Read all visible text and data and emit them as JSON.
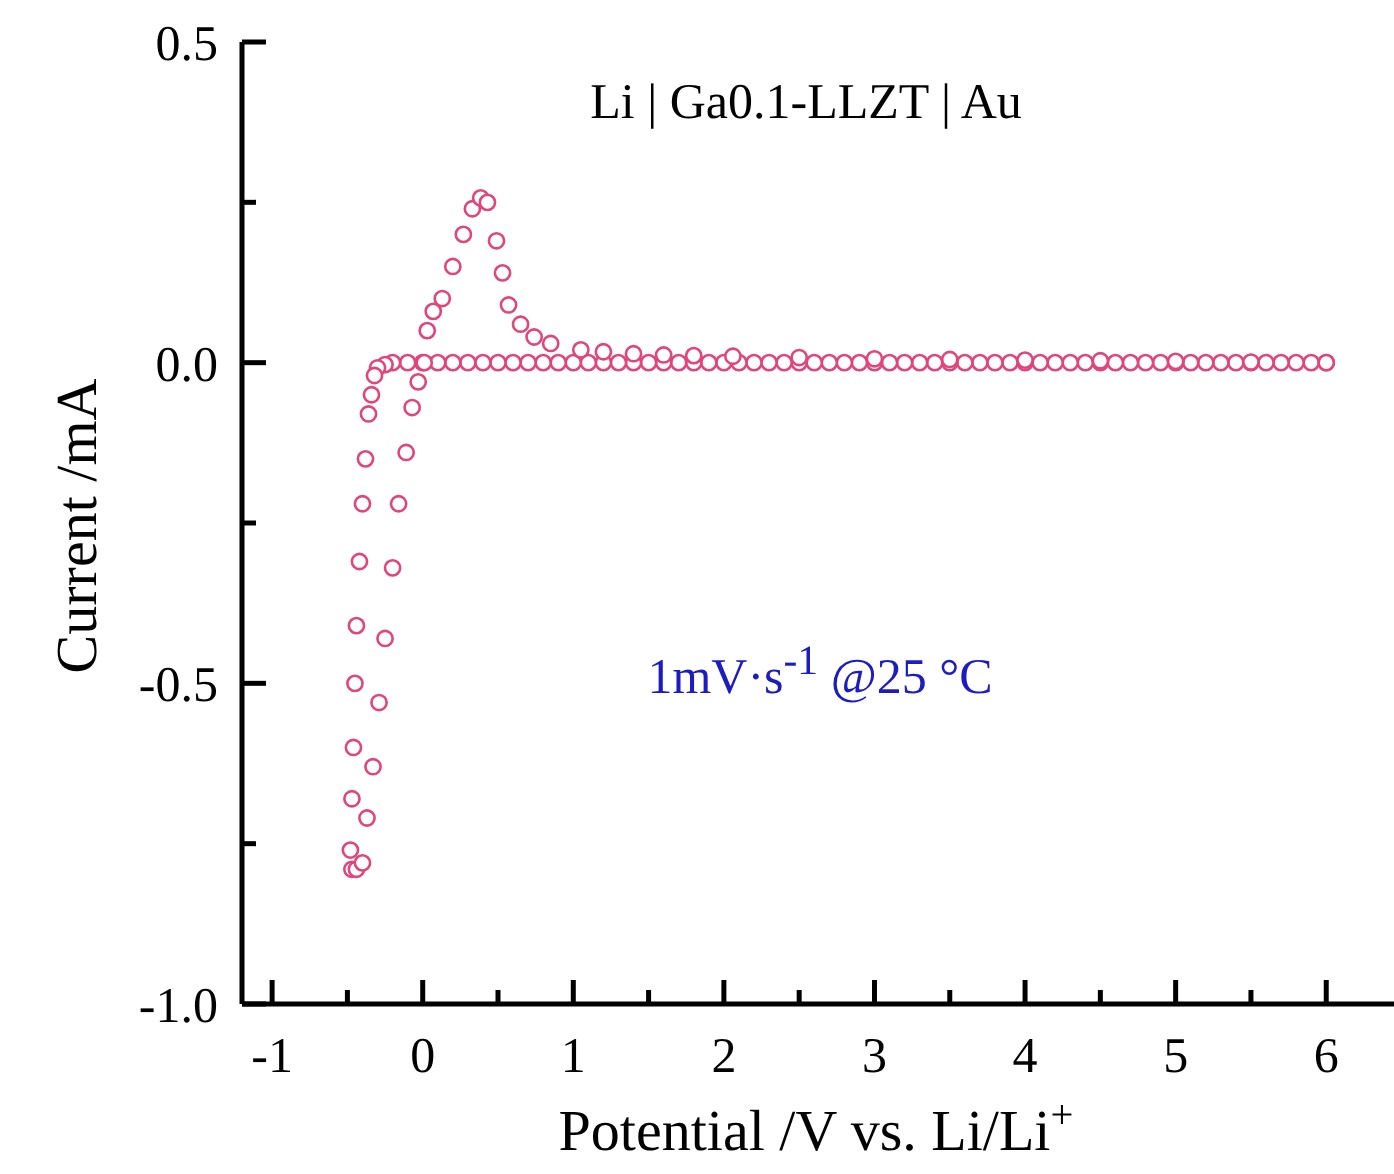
{
  "chart_data": {
    "type": "scatter",
    "xlabel": "Potential /V vs. Li/Li$^{+}$",
    "ylabel": "Current /mA",
    "annotations": [
      "Li | Ga0.1-LLZT | Au",
      "1mV·s$^{-1}$ @25 °C"
    ],
    "xlim": [
      -1.2,
      6.45
    ],
    "ylim": [
      -1,
      0.5
    ],
    "xticks": [
      -1,
      {
        "value": -0.5,
        "label": null
      },
      0,
      {
        "value": 0.5,
        "label": null
      },
      1,
      {
        "value": 1.5,
        "label": null
      },
      2,
      {
        "value": 2.5,
        "label": null
      },
      3,
      {
        "value": 3.5,
        "label": null
      },
      4,
      {
        "value": 4.5,
        "label": null
      },
      5,
      {
        "value": 5.5,
        "label": null
      },
      6
    ],
    "yticks": [
      {
        "value": -1,
        "label": "-1.0"
      },
      {
        "value": -0.75,
        "label": null
      },
      {
        "value": -0.5,
        "label": "-0.5"
      },
      {
        "value": -0.25,
        "label": null
      },
      {
        "value": 0,
        "label": "0.0"
      },
      {
        "value": 0.25,
        "label": null
      },
      {
        "value": 0.5,
        "label": "0.5"
      }
    ],
    "grid": false,
    "legend": false,
    "marker": "circle",
    "series": [
      {
        "color": "#e0457b",
        "x": [
          6,
          5.9,
          5.8,
          5.7,
          5.6,
          5.5,
          5.4,
          5.3,
          5.2,
          5.1,
          5,
          4.9,
          4.8,
          4.7,
          4.6,
          4.5,
          4.4,
          4.3,
          4.2,
          4.1,
          4,
          3.9,
          3.8,
          3.7,
          3.6,
          3.5,
          3.4,
          3.3,
          3.2,
          3.1,
          3,
          2.9,
          2.8,
          2.7,
          2.6,
          2.5,
          2.4,
          2.3,
          2.2,
          2.1,
          2,
          1.9,
          1.8,
          1.7,
          1.6,
          1.5,
          1.4,
          1.3,
          1.2,
          1.1,
          1,
          0.9,
          0.8,
          0.7,
          0.6,
          0.5,
          0.4,
          0.3,
          0.2,
          0.1,
          0,
          -0.1,
          -0.2,
          -0.25,
          -0.3,
          -0.32,
          -0.34,
          -0.36,
          -0.38,
          -0.4,
          -0.42,
          -0.44,
          -0.45,
          -0.46,
          -0.47,
          -0.48,
          -0.47,
          -0.44,
          -0.4,
          -0.37,
          -0.33,
          -0.29,
          -0.25,
          -0.2,
          -0.16,
          -0.11,
          -0.07,
          -0.03,
          0.01,
          0.03,
          0.07,
          0.13,
          0.2,
          0.27,
          0.33,
          0.385,
          0.43,
          0.49,
          0.53,
          0.57,
          0.65,
          0.74,
          0.85,
          1.05,
          1.2,
          1.4,
          1.6,
          1.8,
          2.06,
          2.5,
          3,
          3.5,
          4,
          4.5,
          5,
          5.5,
          6
        ],
        "values": [
          0,
          0,
          0,
          0,
          0,
          0,
          0,
          0,
          0,
          0,
          0,
          0,
          0,
          0,
          0,
          0,
          0,
          0,
          0,
          0,
          0,
          0,
          0,
          0,
          0,
          0,
          0,
          0,
          0,
          0,
          0,
          0,
          0,
          0,
          0,
          0,
          0,
          0,
          0,
          0,
          0,
          0,
          0,
          0,
          0,
          0,
          0,
          0,
          0,
          0,
          0,
          0,
          0,
          0,
          0,
          0,
          0,
          0,
          0,
          0,
          0,
          0,
          0,
          -0.003,
          -0.008,
          -0.02,
          -0.05,
          -0.08,
          -0.15,
          -0.22,
          -0.31,
          -0.41,
          -0.5,
          -0.6,
          -0.68,
          -0.76,
          -0.79,
          -0.79,
          -0.78,
          -0.71,
          -0.63,
          -0.53,
          -0.43,
          -0.32,
          -0.22,
          -0.14,
          -0.07,
          -0.03,
          0,
          0.05,
          0.08,
          0.1,
          0.15,
          0.2,
          0.24,
          0.257,
          0.25,
          0.19,
          0.14,
          0.09,
          0.06,
          0.04,
          0.03,
          0.02,
          0.017,
          0.014,
          0.012,
          0.011,
          0.01,
          0.008,
          0.006,
          0.005,
          0.004,
          0.003,
          0.002,
          0.001,
          0
        ]
      }
    ]
  }
}
